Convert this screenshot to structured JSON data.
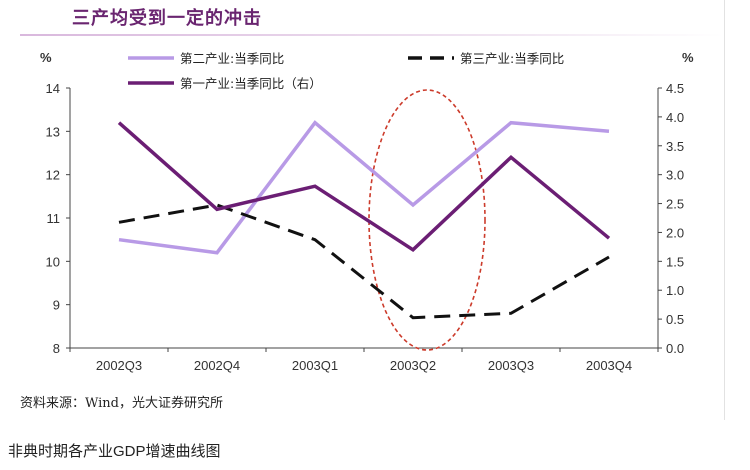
{
  "header": {
    "title": "三产均受到一定的冲击"
  },
  "chart_data": {
    "type": "line",
    "title": "三产均受到一定的冲击",
    "categories": [
      "2002Q3",
      "2002Q4",
      "2003Q1",
      "2003Q2",
      "2003Q3",
      "2003Q4"
    ],
    "left_axis": {
      "unit": "%",
      "min": 8,
      "max": 14,
      "ticks": [
        8,
        9,
        10,
        11,
        12,
        13,
        14
      ]
    },
    "right_axis": {
      "unit": "%",
      "min": 0.0,
      "max": 4.5,
      "ticks": [
        "0.0",
        "0.5",
        "1.0",
        "1.5",
        "2.0",
        "2.5",
        "3.0",
        "3.5",
        "4.0",
        "4.5"
      ]
    },
    "series": [
      {
        "name": "第二产业:当季同比",
        "axis": "left",
        "style": "solid",
        "color": "#b89ae6",
        "values": [
          10.5,
          10.2,
          13.2,
          11.3,
          13.2,
          13.0
        ]
      },
      {
        "name": "第三产业:当季同比",
        "axis": "left",
        "style": "dashed",
        "color": "#111111",
        "values": [
          10.9,
          11.3,
          10.5,
          8.7,
          8.8,
          10.1
        ]
      },
      {
        "name": "第一产业:当季同比（右）",
        "axis": "right",
        "style": "solid",
        "color": "#6b1e74",
        "values": [
          3.9,
          2.4,
          2.8,
          1.7,
          3.3,
          1.9
        ]
      }
    ],
    "highlight": {
      "category": "2003Q2",
      "shape": "dashed-ellipse",
      "color": "#cc3b2b"
    },
    "legend": "top"
  },
  "footer": {
    "source": "资料来源：Wind，光大证券研究所",
    "caption": "非典时期各产业GDP增速曲线图"
  },
  "colors": {
    "title": "#6a2570",
    "axis": "#444444"
  }
}
